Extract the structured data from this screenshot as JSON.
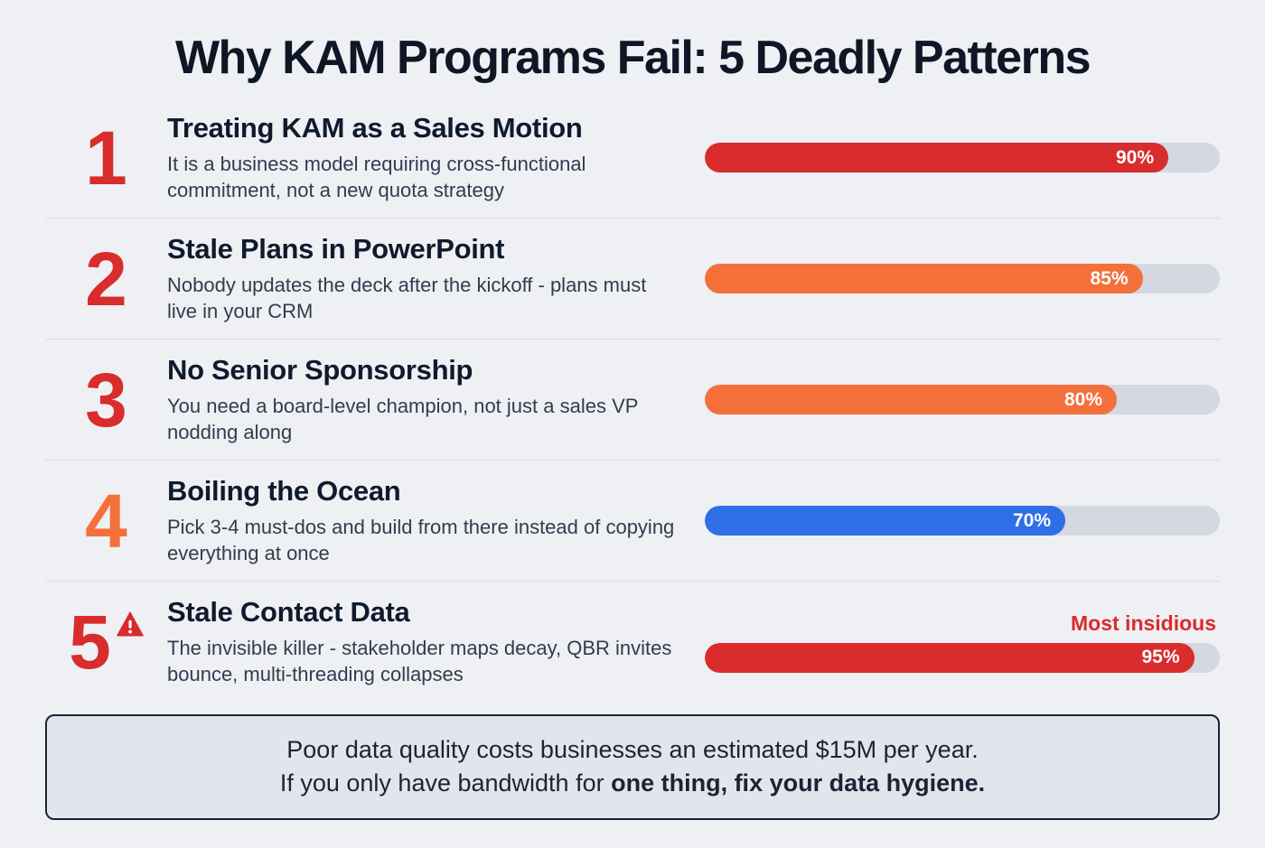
{
  "title": "Why KAM Programs Fail: 5 Deadly Patterns",
  "items": [
    {
      "number": "1",
      "number_color": "#d92c2c",
      "title": "Treating KAM as a Sales Motion",
      "description": "It is a business model requiring cross-functional commitment, not a new quota strategy",
      "percent_label": "90%",
      "percent_value": 90,
      "bar_color": "#d92c2c",
      "badge": ""
    },
    {
      "number": "2",
      "number_color": "#d92c2c",
      "title": "Stale Plans in PowerPoint",
      "description": "Nobody updates the deck after the kickoff - plans must live in your CRM",
      "percent_label": "85%",
      "percent_value": 85,
      "bar_color": "#f4703a",
      "badge": ""
    },
    {
      "number": "3",
      "number_color": "#d92c2c",
      "title": "No Senior Sponsorship",
      "description": "You need a board-level champion, not just a sales VP nodding along",
      "percent_label": "80%",
      "percent_value": 80,
      "bar_color": "#f4703a",
      "badge": ""
    },
    {
      "number": "4",
      "number_color": "#f4703a",
      "title": "Boiling the Ocean",
      "description": "Pick 3-4 must-dos and build from there instead of copying everything at once",
      "percent_label": "70%",
      "percent_value": 70,
      "bar_color": "#2e6fe8",
      "badge": ""
    },
    {
      "number": "5",
      "number_color": "#d92c2c",
      "title": "Stale Contact Data",
      "description": "The invisible killer - stakeholder maps decay, QBR invites bounce, multi-threading collapses",
      "percent_label": "95%",
      "percent_value": 95,
      "bar_color": "#d92c2c",
      "badge": "Most insidious"
    }
  ],
  "footer": {
    "line1": "Poor data quality costs businesses an estimated $15M per year.",
    "line2_prefix": "If you only have bandwidth for ",
    "line2_bold": "one thing, fix your data hygiene."
  },
  "colors": {
    "background": "#eef0f4",
    "track": "#d4d8e1",
    "accent_red": "#d92c2c",
    "accent_orange": "#f4703a",
    "accent_blue": "#2e6fe8"
  },
  "chart_data": {
    "type": "bar",
    "title": "Why KAM Programs Fail: 5 Deadly Patterns",
    "categories": [
      "Treating KAM as a Sales Motion",
      "Stale Plans in PowerPoint",
      "No Senior Sponsorship",
      "Boiling the Ocean",
      "Stale Contact Data"
    ],
    "values": [
      90,
      85,
      80,
      70,
      95
    ],
    "value_labels": [
      "90%",
      "85%",
      "80%",
      "70%",
      "95%"
    ],
    "bar_colors": [
      "#d92c2c",
      "#f4703a",
      "#f4703a",
      "#2e6fe8",
      "#d92c2c"
    ],
    "xlabel": "",
    "ylabel": "",
    "xlim": [
      0,
      100
    ],
    "grid": false,
    "legend": false,
    "annotations": [
      "Most insidious (on item 5)"
    ]
  }
}
